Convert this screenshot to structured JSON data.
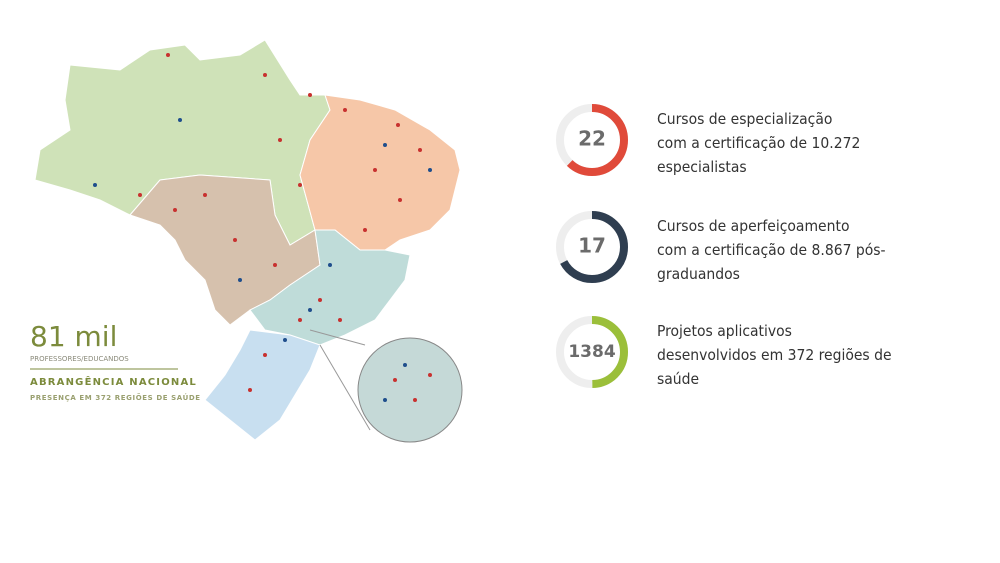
{
  "summary": {
    "number": "81 mil",
    "caption": "PROFESSORES/EDUCANDOS",
    "heading": "ABRANGÊNCIA NACIONAL",
    "subheading": "PRESENÇA EM 372 REGIÕES DE SAÚDE"
  },
  "stats": [
    {
      "value": 22,
      "lines": [
        "Cursos de especialização",
        "com a certificação de 10.272",
        "especialistas"
      ]
    },
    {
      "value": 17,
      "lines": [
        "Cursos de aperfeiçoamento",
        "com a certificação de 8.867 pós-",
        "graduandos"
      ]
    },
    {
      "value": 1384,
      "lines": [
        "Projetos aplicativos",
        "desenvolvidos em 372 regiões de",
        "saúde"
      ]
    }
  ]
}
